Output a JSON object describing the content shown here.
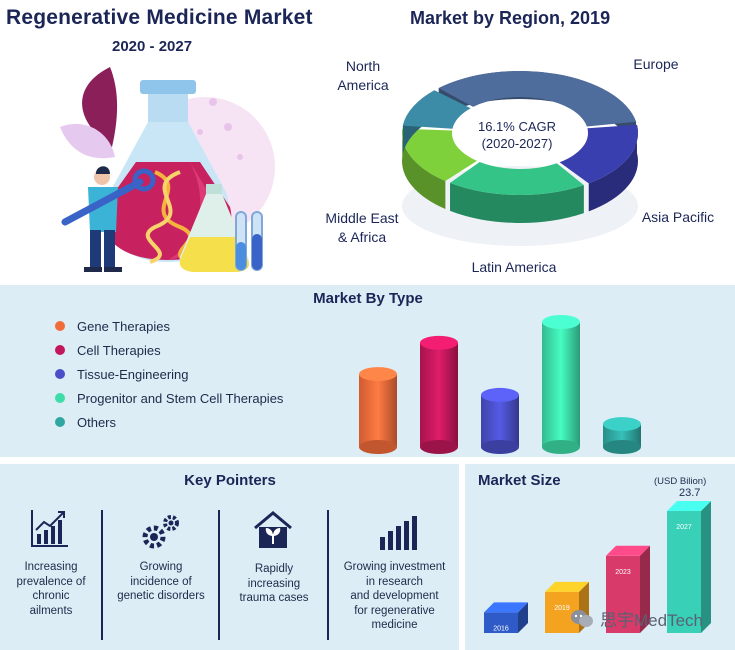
{
  "header": {
    "title": "Regenerative Medicine Market",
    "subtitle": "2020 - 2027"
  },
  "region": {
    "title": "Market by Region, 2019",
    "cagr_line1": "16.1% CAGR",
    "cagr_line2": "(2020-2027)",
    "labels": {
      "north_america_1": "North",
      "north_america_2": "America",
      "europe": "Europe",
      "asia_pacific": "Asia Pacific",
      "latin_america": "Latin America",
      "mea_1": "Middle East",
      "mea_2": "& Africa"
    }
  },
  "type_section": {
    "title": "Market By Type",
    "legend": [
      {
        "label": "Gene Therapies",
        "color": "#f26b3a"
      },
      {
        "label": "Cell Therapies",
        "color": "#c2185b"
      },
      {
        "label": "Tissue-Engineering",
        "color": "#4a4fc7"
      },
      {
        "label": "Progenitor and Stem Cell Therapies",
        "color": "#3ddca8"
      },
      {
        "label": "Others",
        "color": "#2fa7a0"
      }
    ]
  },
  "key_pointers": {
    "title": "Key Pointers",
    "items": [
      {
        "icon": "bar-chart-icon",
        "l1": "Increasing",
        "l2": "prevalence of",
        "l3": "chronic",
        "l4": "ailments"
      },
      {
        "icon": "gears-icon",
        "l1": "Growing",
        "l2": "incidence of",
        "l3": "genetic disorders",
        "l4": ""
      },
      {
        "icon": "house-plant-icon",
        "l1": "Rapidly",
        "l2": "increasing",
        "l3": "trauma cases",
        "l4": ""
      },
      {
        "icon": "growth-bars-icon",
        "l1": "Growing investment",
        "l2": "in research",
        "l3": "and development",
        "l4": "for regenerative",
        "l5": "medicine"
      }
    ]
  },
  "market_size": {
    "title": "Market Size",
    "unit": "(USD Bilion)",
    "top_value": "23.7"
  },
  "watermark": {
    "text": "思宇MedTech"
  },
  "chart_data": [
    {
      "type": "bar",
      "title": "Market By Type",
      "categories": [
        "Gene Therapies",
        "Cell Therapies",
        "Tissue-Engineering",
        "Progenitor and Stem Cell Therapies",
        "Others"
      ],
      "values": [
        70,
        100,
        50,
        120,
        22
      ],
      "colors": [
        "#f26b3a",
        "#c2185b",
        "#4a4fc7",
        "#3ddca8",
        "#2fa7a0"
      ]
    },
    {
      "type": "pie",
      "title": "Market by Region, 2019",
      "categories": [
        "North America",
        "Europe",
        "Asia Pacific",
        "Latin America",
        "Middle East & Africa"
      ],
      "values": [
        35,
        18,
        20,
        16,
        11
      ],
      "colors": [
        "#4e6d9c",
        "#3a3fb0",
        "#35c487",
        "#7fd13b",
        "#3c8ca8"
      ]
    },
    {
      "type": "bar",
      "title": "Market Size",
      "ylabel": "(USD Bilion)",
      "categories": [
        "2016",
        "2019",
        "2023",
        "2027"
      ],
      "values": [
        4,
        8,
        15,
        23.7
      ],
      "colors": [
        "#2e5bc7",
        "#f4a320",
        "#d83a6a",
        "#38d1b8"
      ]
    }
  ]
}
